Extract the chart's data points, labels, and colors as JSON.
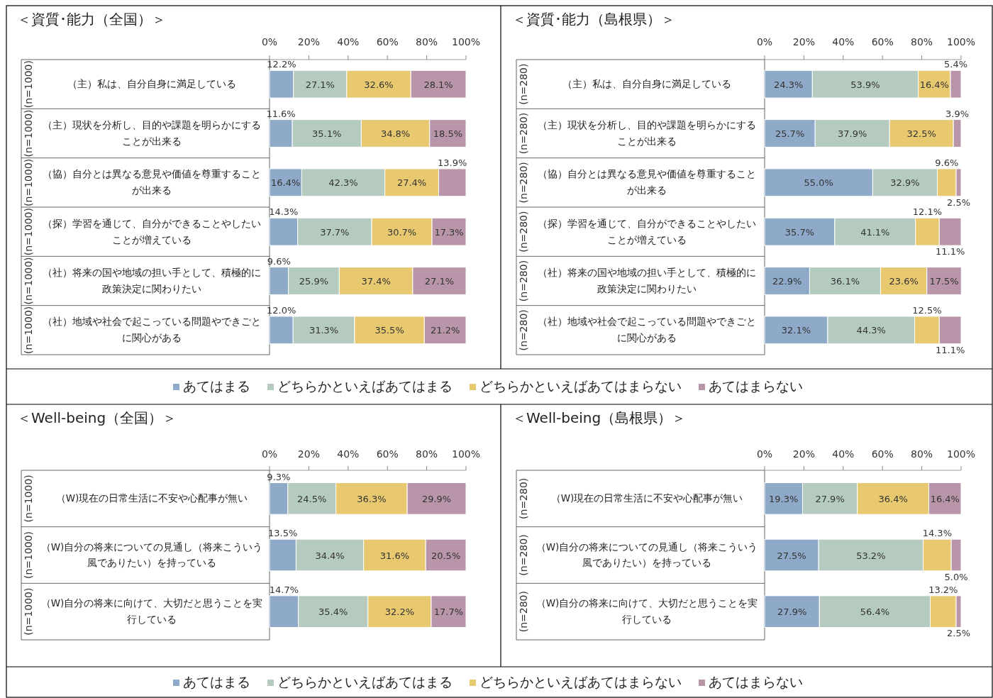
{
  "chart_data": [
    {
      "type": "bar",
      "orientation": "horizontal",
      "stacked": true,
      "title": "＜資質･能力（全国）＞",
      "legend": "bottom",
      "categories": [
        "（主）私は、自分自身に満足している",
        "（主）現状を分析し、目的や課題を明らかにすることが出来る",
        "（協）自分とは異なる意見や価値を尊重することが出来る",
        "（探）学習を通じて、自分ができることやしたいことが増えている",
        "（社）将来の国や地域の担い手として、積極的に政策決定に関わりたい",
        "（社）地域や社会で起こっている問題やできごとに関心がある"
      ],
      "annotations": [
        "(n=1000)",
        "(n=1000)",
        "(n=1000)",
        "(n=1000)",
        "(n=1000)",
        "(n=1000)"
      ],
      "xlim": [
        0,
        100
      ],
      "xticks": [
        {
          "value": 0,
          "label": "0%"
        },
        {
          "value": 20,
          "label": "20%"
        },
        {
          "value": 40,
          "label": "40%"
        },
        {
          "value": 60,
          "label": "60%"
        },
        {
          "value": 80,
          "label": "80%"
        },
        {
          "value": 100,
          "label": "100%"
        }
      ],
      "series": [
        {
          "name": "あてはまる",
          "color": "#8eaac8",
          "values": [
            12.2,
            11.6,
            16.4,
            14.3,
            9.6,
            12.0
          ],
          "value_labels": [
            "12.2%",
            "11.6%",
            "16.4%",
            "14.3%",
            "9.6%",
            "12.0%"
          ]
        },
        {
          "name": "どちらかといえばあてはまる",
          "color": "#b6cbc0",
          "values": [
            27.1,
            35.1,
            42.3,
            37.7,
            25.9,
            31.3
          ],
          "value_labels": [
            "27.1%",
            "35.1%",
            "42.3%",
            "37.7%",
            "25.9%",
            "31.3%"
          ]
        },
        {
          "name": "どちらかといえばあてはまらない",
          "color": "#e8c970",
          "values": [
            32.6,
            34.8,
            27.4,
            30.7,
            37.4,
            35.5
          ],
          "value_labels": [
            "32.6%",
            "34.8%",
            "27.4%",
            "30.7%",
            "37.4%",
            "35.5%"
          ]
        },
        {
          "name": "あてはまらない",
          "color": "#b995aa",
          "values": [
            28.1,
            18.5,
            13.9,
            17.3,
            27.1,
            21.2
          ],
          "value_labels": [
            "28.1%",
            "18.5%",
            "13.9%",
            "17.3%",
            "27.1%",
            "21.2%"
          ]
        }
      ]
    },
    {
      "type": "bar",
      "orientation": "horizontal",
      "stacked": true,
      "title": "＜資質･能力（島根県）＞",
      "categories": [
        "（主）私は、自分自身に満足している",
        "（主）現状を分析し、目的や課題を明らかにすることが出来る",
        "（協）自分とは異なる意見や価値を尊重することが出来る",
        "（探）学習を通じて、自分ができることやしたいことが増えている",
        "（社）将来の国や地域の担い手として、積極的に政策決定に関わりたい",
        "（社）地域や社会で起こっている問題やできごとに関心がある"
      ],
      "annotations": [
        "(n=280)",
        "(n=280)",
        "(n=280)",
        "(n=280)",
        "(n=280)",
        "(n=280)"
      ],
      "xlim": [
        0,
        100
      ],
      "xticks": [
        {
          "value": 0,
          "label": "0%"
        },
        {
          "value": 20,
          "label": "20%"
        },
        {
          "value": 40,
          "label": "40%"
        },
        {
          "value": 60,
          "label": "60%"
        },
        {
          "value": 80,
          "label": "80%"
        },
        {
          "value": 100,
          "label": "100%"
        }
      ],
      "series": [
        {
          "color": "#8eaac8",
          "values": [
            24.3,
            25.7,
            55.0,
            35.7,
            22.9,
            32.1
          ],
          "value_labels": [
            "24.3%",
            "25.7%",
            "55.0%",
            "35.7%",
            "22.9%",
            "32.1%"
          ]
        },
        {
          "color": "#b6cbc0",
          "values": [
            53.9,
            37.9,
            32.9,
            41.1,
            36.1,
            44.3
          ],
          "value_labels": [
            "53.9%",
            "37.9%",
            "32.9%",
            "41.1%",
            "36.1%",
            "44.3%"
          ]
        },
        {
          "color": "#e8c970",
          "values": [
            16.4,
            32.5,
            9.6,
            12.1,
            23.6,
            12.5
          ],
          "value_labels": [
            "16.4%",
            "32.5%",
            "9.6%",
            "12.1%",
            "23.6%",
            "12.5%"
          ]
        },
        {
          "color": "#b995aa",
          "values": [
            5.4,
            3.9,
            2.5,
            11.1,
            17.5,
            11.1
          ],
          "value_labels": [
            "5.4%",
            "3.9%",
            "2.5%",
            "11.1%",
            "17.5%",
            "11.1%"
          ]
        }
      ]
    },
    {
      "type": "bar",
      "orientation": "horizontal",
      "stacked": true,
      "title": "＜Well-being（全国）＞",
      "legend": "bottom",
      "categories": [
        "（W)現在の日常生活に不安や心配事が無い",
        "（W)自分の将来についての見通し（将来こういう風でありたい）を持っている",
        "（W)自分の将来に向けて、大切だと思うことを実行している"
      ],
      "annotations": [
        "(n=1000)",
        "(n=1000)",
        "(n=1000)"
      ],
      "xlim": [
        0,
        100
      ],
      "xticks": [
        {
          "value": 0,
          "label": "0%"
        },
        {
          "value": 20,
          "label": "20%"
        },
        {
          "value": 40,
          "label": "40%"
        },
        {
          "value": 60,
          "label": "60%"
        },
        {
          "value": 80,
          "label": "80%"
        },
        {
          "value": 100,
          "label": "100%"
        }
      ],
      "series": [
        {
          "name": "あてはまる",
          "color": "#8eaac8",
          "values": [
            9.3,
            13.5,
            14.7
          ],
          "value_labels": [
            "9.3%",
            "13.5%",
            "14.7%"
          ]
        },
        {
          "name": "どちらかといえばあてはまる",
          "color": "#b6cbc0",
          "values": [
            24.5,
            34.4,
            35.4
          ],
          "value_labels": [
            "24.5%",
            "34.4%",
            "35.4%"
          ]
        },
        {
          "name": "どちらかといえばあてはまらない",
          "color": "#e8c970",
          "values": [
            36.3,
            31.6,
            32.2
          ],
          "value_labels": [
            "36.3%",
            "31.6%",
            "32.2%"
          ]
        },
        {
          "name": "あてはまらない",
          "color": "#b995aa",
          "values": [
            29.9,
            20.5,
            17.7
          ],
          "value_labels": [
            "29.9%",
            "20.5%",
            "17.7%"
          ]
        }
      ]
    },
    {
      "type": "bar",
      "orientation": "horizontal",
      "stacked": true,
      "title": "＜Well-being（島根県）＞",
      "categories": [
        "（W)現在の日常生活に不安や心配事が無い",
        "（W)自分の将来についての見通し（将来こういう風でありたい）を持っている",
        "（W)自分の将来に向けて、大切だと思うことを実行している"
      ],
      "annotations": [
        "(n=280)",
        "(n=280)",
        "(n=280)"
      ],
      "xlim": [
        0,
        100
      ],
      "xticks": [
        {
          "value": 0,
          "label": "0%"
        },
        {
          "value": 20,
          "label": "20%"
        },
        {
          "value": 40,
          "label": "40%"
        },
        {
          "value": 60,
          "label": "60%"
        },
        {
          "value": 80,
          "label": "80%"
        },
        {
          "value": 100,
          "label": "100%"
        }
      ],
      "series": [
        {
          "color": "#8eaac8",
          "values": [
            19.3,
            27.5,
            27.9
          ],
          "value_labels": [
            "19.3%",
            "27.5%",
            "27.9%"
          ]
        },
        {
          "color": "#b6cbc0",
          "values": [
            27.9,
            53.2,
            56.4
          ],
          "value_labels": [
            "27.9%",
            "53.2%",
            "56.4%"
          ]
        },
        {
          "color": "#e8c970",
          "values": [
            36.4,
            14.3,
            13.2
          ],
          "value_labels": [
            "36.4%",
            "14.3%",
            "13.2%"
          ]
        },
        {
          "color": "#b995aa",
          "values": [
            16.4,
            5.0,
            2.5
          ],
          "value_labels": [
            "16.4%",
            "5.0%",
            "2.5%"
          ]
        }
      ]
    }
  ]
}
